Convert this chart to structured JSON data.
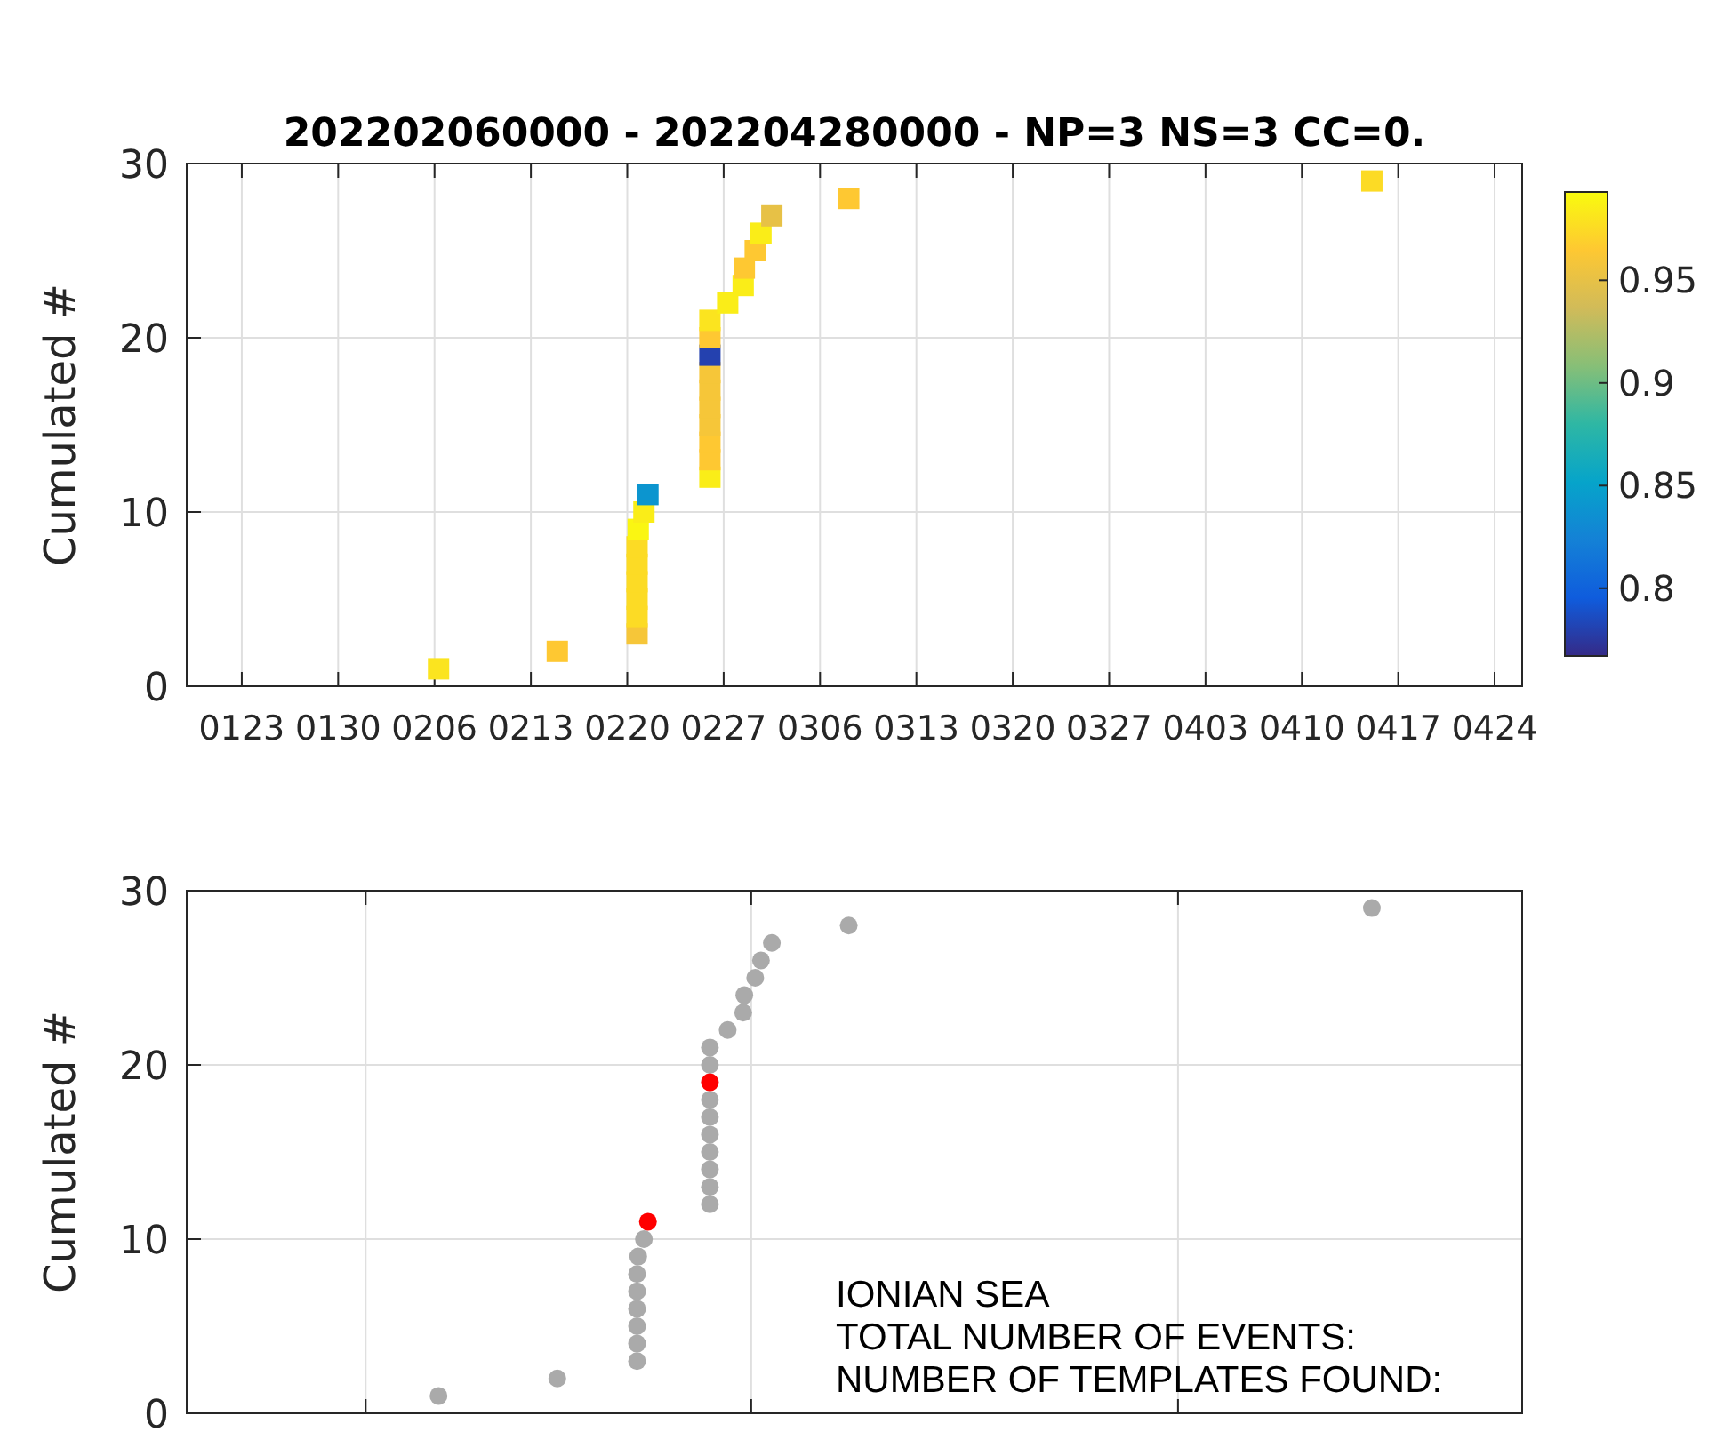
{
  "chart_data": [
    {
      "type": "scatter",
      "title": "202202060000 - 202204280000 - NP=3 NS=3 CC=0.",
      "ylabel": "Cumulated #",
      "marker": "square",
      "grid": true,
      "x": [
        "2022-02-06T07:00",
        "2022-02-14T22:00",
        "2022-02-20T17:00",
        "2022-02-20T17:00",
        "2022-02-20T17:00",
        "2022-02-20T17:00",
        "2022-02-20T17:00",
        "2022-02-20T17:00",
        "2022-02-20T19:00",
        "2022-02-21T05:00",
        "2022-02-21T12:00",
        "2022-02-26T00:00",
        "2022-02-26T00:00",
        "2022-02-26T00:00",
        "2022-02-26T00:00",
        "2022-02-26T00:00",
        "2022-02-26T00:00",
        "2022-02-26T00:00",
        "2022-02-26T00:00",
        "2022-02-26T00:00",
        "2022-02-26T00:00",
        "2022-02-27T07:00",
        "2022-02-28T10:00",
        "2022-02-28T12:00",
        "2022-03-01T07:00",
        "2022-03-01T17:00",
        "2022-03-02T12:00",
        "2022-03-08T02:00",
        "2022-04-15T02:00"
      ],
      "values": [
        1,
        2,
        3,
        4,
        5,
        6,
        7,
        8,
        9,
        10,
        11,
        12,
        13,
        14,
        15,
        16,
        17,
        18,
        19,
        20,
        21,
        22,
        23,
        24,
        25,
        26,
        27,
        28,
        29
      ],
      "cvalues": [
        0.98,
        0.965,
        0.96,
        0.975,
        0.975,
        0.975,
        0.975,
        0.975,
        0.99,
        0.985,
        0.84,
        0.985,
        0.965,
        0.965,
        0.96,
        0.96,
        0.96,
        0.96,
        0.78,
        0.965,
        0.98,
        0.985,
        0.985,
        0.965,
        0.965,
        0.985,
        0.95,
        0.965,
        0.975
      ],
      "clim": [
        0.767,
        0.993
      ],
      "cticks": [
        0.8,
        0.85,
        0.9,
        0.95
      ],
      "xlim": [
        "2022-01-19",
        "2022-04-26"
      ],
      "xticks": [
        {
          "value": "2022-01-23",
          "label": "0123"
        },
        {
          "value": "2022-01-30",
          "label": "0130"
        },
        {
          "value": "2022-02-06",
          "label": "0206"
        },
        {
          "value": "2022-02-13",
          "label": "0213"
        },
        {
          "value": "2022-02-20",
          "label": "0220"
        },
        {
          "value": "2022-02-27",
          "label": "0227"
        },
        {
          "value": "2022-03-06",
          "label": "0306"
        },
        {
          "value": "2022-03-13",
          "label": "0313"
        },
        {
          "value": "2022-03-20",
          "label": "0320"
        },
        {
          "value": "2022-03-27",
          "label": "0327"
        },
        {
          "value": "2022-04-03",
          "label": "0403"
        },
        {
          "value": "2022-04-10",
          "label": "0410"
        },
        {
          "value": "2022-04-17",
          "label": "0417"
        },
        {
          "value": "2022-04-24",
          "label": "0424"
        }
      ],
      "ylim": [
        0,
        30
      ],
      "yticks": [
        0,
        10,
        20,
        30
      ]
    },
    {
      "type": "scatter",
      "ylabel": "Cumulated #",
      "marker": "circle",
      "grid": true,
      "tick_labels": "y",
      "xlim": [
        "2022-01-19",
        "2022-04-26"
      ],
      "xticks": [
        {
          "value": "2022-02-01",
          "label": null
        },
        {
          "value": "2022-03-01",
          "label": null
        },
        {
          "value": "2022-04-01",
          "label": null
        }
      ],
      "ylim": [
        0,
        30
      ],
      "yticks": [
        0,
        10,
        20,
        30
      ],
      "series": [
        {
          "color": "#aaaaaa",
          "x": [
            "2022-02-06T07:00",
            "2022-02-14T22:00",
            "2022-02-20T17:00",
            "2022-02-20T17:00",
            "2022-02-20T17:00",
            "2022-02-20T17:00",
            "2022-02-20T17:00",
            "2022-02-20T17:00",
            "2022-02-20T19:00",
            "2022-02-21T05:00",
            "2022-02-26T00:00",
            "2022-02-26T00:00",
            "2022-02-26T00:00",
            "2022-02-26T00:00",
            "2022-02-26T00:00",
            "2022-02-26T00:00",
            "2022-02-26T00:00",
            "2022-02-26T00:00",
            "2022-02-26T00:00",
            "2022-02-27T07:00",
            "2022-02-28T10:00",
            "2022-02-28T12:00",
            "2022-03-01T07:00",
            "2022-03-01T17:00",
            "2022-03-02T12:00",
            "2022-03-08T02:00",
            "2022-04-15T02:00"
          ],
          "values": [
            1,
            2,
            3,
            4,
            5,
            6,
            7,
            8,
            9,
            10,
            12,
            13,
            14,
            15,
            16,
            17,
            18,
            20,
            21,
            22,
            23,
            24,
            25,
            26,
            27,
            28,
            29
          ]
        },
        {
          "color": "#ff0000",
          "x": [
            "2022-02-21T12:00",
            "2022-02-26T00:00"
          ],
          "values": [
            11,
            19
          ]
        }
      ],
      "annotations": [
        "IONIAN SEA",
        "TOTAL NUMBER OF EVENTS:",
        "NUMBER OF TEMPLATES FOUND:"
      ]
    }
  ]
}
